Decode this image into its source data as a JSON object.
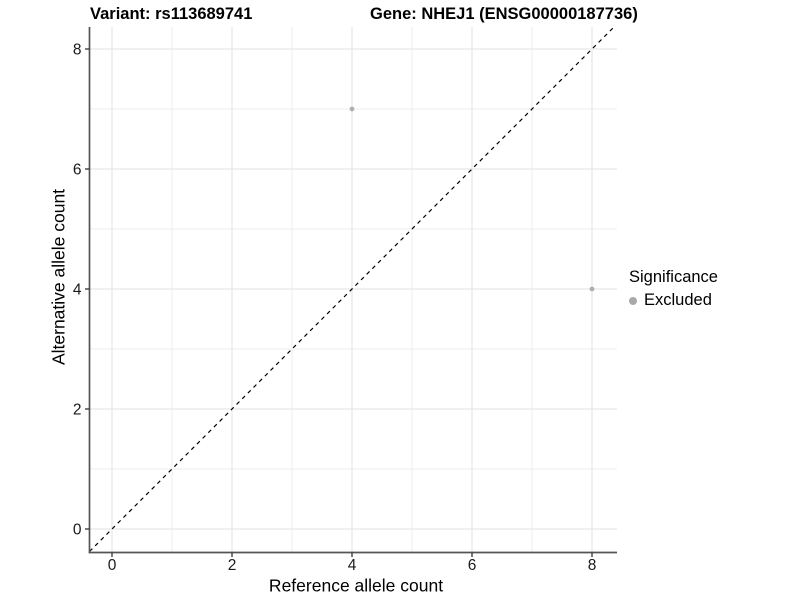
{
  "header": {
    "variant_title": "Variant: rs113689741",
    "gene_title": "Gene: NHEJ1 (ENSG00000187736)"
  },
  "chart_data": {
    "type": "scatter",
    "xlabel": "Reference allele count",
    "ylabel": "Alternative allele count",
    "x_ticks": [
      0,
      2,
      4,
      6,
      8
    ],
    "y_ticks": [
      0,
      2,
      4,
      6,
      8
    ],
    "x_minor_ticks": [
      1,
      3,
      5,
      7
    ],
    "y_minor_ticks": [
      1,
      3,
      5,
      7
    ],
    "xlim": [
      -0.38,
      8.42
    ],
    "ylim": [
      -0.39,
      8.37
    ],
    "grid": true,
    "legend_position": "right",
    "identity_line": {
      "slope": 1,
      "intercept": 0,
      "style": "dashed",
      "color": "#000000"
    },
    "series": [
      {
        "name": "Excluded",
        "color": "#a9a9a9",
        "points": [
          {
            "x": 4,
            "y": 7
          },
          {
            "x": 8,
            "y": 4
          }
        ]
      }
    ]
  },
  "legend": {
    "title": "Significance",
    "items": [
      {
        "label": "Excluded",
        "color": "#a9a9a9"
      }
    ]
  },
  "style": {
    "background": "#ffffff",
    "grid_major_color": "#e2e2e2",
    "grid_minor_color": "#ececec",
    "axis_line_color": "#555555",
    "tick_mark_color": "#333333",
    "tick_label_color": "#1a1a1a"
  }
}
